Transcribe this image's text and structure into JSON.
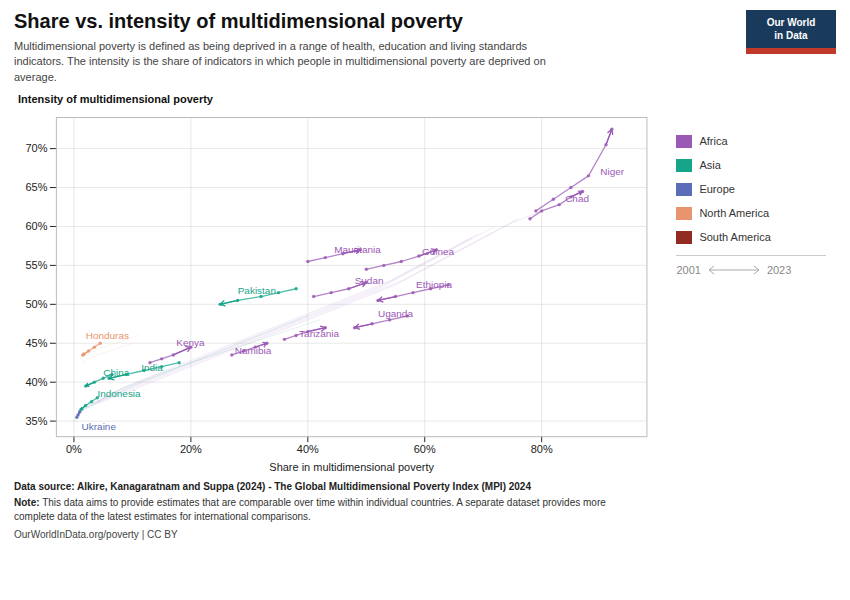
{
  "chart_data": {
    "type": "line",
    "marker": "circle",
    "title": "Share vs. intensity of multidimensional poverty",
    "subtitle": "Multidimensional poverty is defined as being deprived in a range of health, education and living standards\nindicators. The intensity is the share of indicators in which people in multidimensional poverty are deprived on\naverage.",
    "ylabel": "Intensity of multidimensional poverty",
    "xlabel": "Share in multidimensional poverty",
    "source": "Data source: Alkire, Kanagaratnam and Suppa (2024) - The Global Multidimensional Poverty Index (MPI) 2024",
    "note_label": "Note:",
    "note": " This data aims to provide estimates that are comparable over time within individual countries. A separate dataset provides more\ncomplete data of the latest estimates for international comparisons.",
    "credit": "OurWorldInData.org/poverty | CC BY",
    "logo": {
      "lines": [
        "Our World",
        "in Data"
      ],
      "color": "#1a3a5c",
      "stripe_color": "#C0392B"
    },
    "grid": true,
    "legend": "right",
    "legend_items": [
      {
        "name": "Africa",
        "color": "#9B59B6"
      },
      {
        "name": "Asia",
        "color": "#17A589"
      },
      {
        "name": "Europe",
        "color": "#5B6DB8"
      },
      {
        "name": "North America",
        "color": "#E8956D"
      },
      {
        "name": "South America",
        "color": "#922B21"
      }
    ],
    "time_legend": [
      "2001",
      "2023"
    ],
    "xlim": [
      -3,
      98
    ],
    "ylim": [
      33,
      74
    ],
    "xticks": [
      {
        "value": 0,
        "label": "0%"
      },
      {
        "value": 20,
        "label": "20%"
      },
      {
        "value": 40,
        "label": "40%"
      },
      {
        "value": 60,
        "label": "60%"
      },
      {
        "value": 80,
        "label": "80%"
      }
    ],
    "yticks": [
      {
        "value": 35,
        "label": "35%"
      },
      {
        "value": 40,
        "label": "40%"
      },
      {
        "value": 45,
        "label": "45%"
      },
      {
        "value": 50,
        "label": "50%"
      },
      {
        "value": 55,
        "label": "55%"
      },
      {
        "value": 60,
        "label": "60%"
      },
      {
        "value": 65,
        "label": "65%"
      },
      {
        "value": 70,
        "label": "70%"
      }
    ],
    "series": [
      {
        "name": "Niger",
        "continent": "Africa",
        "label_x": 89.5,
        "label_y": 67.0,
        "points": [
          [
            79,
            62.0
          ],
          [
            82,
            63.5
          ],
          [
            85,
            65.0
          ],
          [
            88,
            66.5
          ],
          [
            91,
            70.5
          ],
          [
            92,
            72.5
          ]
        ]
      },
      {
        "name": "Chad",
        "continent": "Africa",
        "label_x": 83.5,
        "label_y": 63.5,
        "points": [
          [
            78,
            61.0
          ],
          [
            80,
            62.0
          ],
          [
            83,
            62.8
          ],
          [
            85,
            63.8
          ],
          [
            87,
            64.5
          ]
        ]
      },
      {
        "name": "Guinea",
        "continent": "Africa",
        "label_x": 59.0,
        "label_y": 56.8,
        "points": [
          [
            50,
            54.5
          ],
          [
            53,
            55.0
          ],
          [
            56,
            55.5
          ],
          [
            59,
            56.2
          ],
          [
            62,
            57.0
          ]
        ]
      },
      {
        "name": "Mauritania",
        "continent": "Africa",
        "label_x": 44.0,
        "label_y": 57.0,
        "points": [
          [
            40,
            55.5
          ],
          [
            43,
            56.0
          ],
          [
            46,
            56.5
          ],
          [
            49,
            57.0
          ]
        ]
      },
      {
        "name": "Sudan",
        "continent": "Africa",
        "label_x": 47.5,
        "label_y": 53.0,
        "points": [
          [
            41,
            51.0
          ],
          [
            44,
            51.5
          ],
          [
            47,
            52.0
          ],
          [
            50,
            52.8
          ]
        ]
      },
      {
        "name": "Ethiopia",
        "continent": "Africa",
        "label_x": 58.0,
        "label_y": 52.5,
        "points": [
          [
            64,
            52.5
          ],
          [
            61,
            52.0
          ],
          [
            58,
            51.5
          ],
          [
            55,
            51.0
          ],
          [
            52,
            50.5
          ]
        ]
      },
      {
        "name": "Uganda",
        "continent": "Africa",
        "label_x": 51.5,
        "label_y": 48.8,
        "points": [
          [
            57,
            48.5
          ],
          [
            54,
            48.0
          ],
          [
            51,
            47.5
          ],
          [
            48,
            47.0
          ]
        ]
      },
      {
        "name": "Tanzania",
        "continent": "Africa",
        "label_x": 38.0,
        "label_y": 46.2,
        "points": [
          [
            36,
            45.5
          ],
          [
            38,
            46.0
          ],
          [
            40,
            46.5
          ],
          [
            43,
            47.0
          ]
        ]
      },
      {
        "name": "Kenya",
        "continent": "Africa",
        "label_x": 17.0,
        "label_y": 45.0,
        "points": [
          [
            13,
            42.5
          ],
          [
            15,
            43.0
          ],
          [
            17,
            43.5
          ],
          [
            20,
            44.5
          ]
        ]
      },
      {
        "name": "Namibia",
        "continent": "Africa",
        "label_x": 27.0,
        "label_y": 44.0,
        "points": [
          [
            27,
            43.5
          ],
          [
            29,
            44.0
          ],
          [
            31,
            44.5
          ],
          [
            33,
            45.0
          ]
        ]
      },
      {
        "name": "Pakistan",
        "continent": "Asia",
        "label_x": 27.5,
        "label_y": 51.8,
        "points": [
          [
            38,
            52.0
          ],
          [
            35,
            51.5
          ],
          [
            32,
            51.0
          ],
          [
            28,
            50.5
          ],
          [
            25,
            50.0
          ]
        ]
      },
      {
        "name": "India",
        "continent": "Asia",
        "label_x": 11.0,
        "label_y": 41.8,
        "points": [
          [
            18,
            42.5
          ],
          [
            15,
            42.0
          ],
          [
            12,
            41.5
          ],
          [
            9,
            41.0
          ],
          [
            6,
            40.5
          ]
        ]
      },
      {
        "name": "China",
        "continent": "Asia",
        "label_x": 4.5,
        "label_y": 41.2,
        "points": [
          [
            6.5,
            41.0
          ],
          [
            5.0,
            40.5
          ],
          [
            3.5,
            40.0
          ],
          [
            2.0,
            39.5
          ]
        ]
      },
      {
        "name": "Indonesia",
        "continent": "Asia",
        "label_x": 3.5,
        "label_y": 38.5,
        "points": [
          [
            4.0,
            38.0
          ],
          [
            3.0,
            37.5
          ],
          [
            2.0,
            37.0
          ],
          [
            1.2,
            36.5
          ]
        ]
      },
      {
        "name": "Ukraine",
        "continent": "Europe",
        "label_x": 0.8,
        "label_y": 34.3,
        "points": [
          [
            0.5,
            35.5
          ],
          [
            0.7,
            35.8
          ],
          [
            1.0,
            36.2
          ]
        ]
      },
      {
        "name": "Honduras",
        "continent": "North America",
        "label_x": 1.5,
        "label_y": 46.0,
        "points": [
          [
            4.5,
            45.0
          ],
          [
            3.5,
            44.5
          ],
          [
            2.5,
            44.0
          ],
          [
            1.5,
            43.5
          ]
        ]
      }
    ],
    "background_series": [
      {
        "continent": "Africa",
        "points": [
          [
            1,
            36.5
          ],
          [
            5,
            37.5
          ],
          [
            10,
            39.0
          ],
          [
            15,
            40.5
          ],
          [
            20,
            42.0
          ],
          [
            25,
            43.5
          ],
          [
            30,
            45.0
          ],
          [
            35,
            46.5
          ],
          [
            40,
            48.0
          ],
          [
            45,
            49.5
          ],
          [
            50,
            51.0
          ],
          [
            55,
            52.5
          ],
          [
            60,
            54.5
          ],
          [
            65,
            56.5
          ],
          [
            70,
            58.5
          ],
          [
            75,
            60.5
          ],
          [
            80,
            62.0
          ]
        ]
      },
      {
        "continent": "Africa",
        "points": [
          [
            2,
            37.0
          ],
          [
            6,
            38.0
          ],
          [
            11,
            39.5
          ],
          [
            16,
            41.0
          ],
          [
            21,
            42.5
          ],
          [
            26,
            44.0
          ],
          [
            31,
            45.5
          ],
          [
            36,
            47.0
          ],
          [
            41,
            48.5
          ],
          [
            46,
            50.0
          ],
          [
            51,
            51.5
          ],
          [
            56,
            53.0
          ],
          [
            61,
            55.0
          ],
          [
            66,
            57.0
          ],
          [
            71,
            59.0
          ],
          [
            76,
            61.0
          ]
        ]
      },
      {
        "continent": "Africa",
        "points": [
          [
            3,
            37.2
          ],
          [
            7,
            38.5
          ],
          [
            12,
            40.0
          ],
          [
            17,
            41.5
          ],
          [
            22,
            43.0
          ],
          [
            27,
            44.5
          ],
          [
            32,
            46.0
          ],
          [
            37,
            47.5
          ],
          [
            42,
            49.0
          ],
          [
            47,
            50.5
          ],
          [
            52,
            52.0
          ],
          [
            57,
            54.0
          ],
          [
            62,
            56.0
          ],
          [
            67,
            58.0
          ],
          [
            72,
            60.0
          ]
        ]
      },
      {
        "continent": "Africa",
        "points": [
          [
            4,
            37.5
          ],
          [
            8,
            39.0
          ],
          [
            13,
            40.5
          ],
          [
            18,
            42.0
          ],
          [
            23,
            43.5
          ],
          [
            28,
            45.0
          ],
          [
            33,
            46.5
          ],
          [
            38,
            48.0
          ],
          [
            43,
            49.5
          ],
          [
            48,
            51.0
          ],
          [
            53,
            52.5
          ],
          [
            58,
            54.5
          ],
          [
            63,
            56.5
          ],
          [
            68,
            58.5
          ]
        ]
      },
      {
        "continent": "Africa",
        "points": [
          [
            5,
            38.0
          ],
          [
            9,
            39.5
          ],
          [
            14,
            41.0
          ],
          [
            19,
            42.5
          ],
          [
            24,
            44.0
          ],
          [
            29,
            45.5
          ],
          [
            34,
            47.0
          ],
          [
            39,
            48.5
          ],
          [
            44,
            50.0
          ],
          [
            49,
            51.5
          ],
          [
            54,
            53.0
          ],
          [
            59,
            55.0
          ],
          [
            64,
            57.0
          ],
          [
            69,
            59.0
          ]
        ]
      },
      {
        "continent": "Asia",
        "points": [
          [
            0.8,
            36.0
          ],
          [
            3,
            37.0
          ],
          [
            6,
            38.0
          ],
          [
            10,
            39.5
          ],
          [
            15,
            41.0
          ],
          [
            20,
            42.5
          ],
          [
            25,
            44.0
          ],
          [
            30,
            45.5
          ],
          [
            35,
            47.0
          ],
          [
            40,
            48.5
          ]
        ]
      },
      {
        "continent": "Asia",
        "points": [
          [
            1.2,
            36.3
          ],
          [
            4,
            37.5
          ],
          [
            7,
            38.8
          ],
          [
            12,
            40.3
          ],
          [
            18,
            42.0
          ],
          [
            24,
            43.5
          ],
          [
            30,
            45.0
          ],
          [
            36,
            46.5
          ],
          [
            42,
            48.0
          ]
        ]
      },
      {
        "continent": "Europe",
        "points": [
          [
            0.2,
            35.0
          ],
          [
            0.5,
            35.5
          ],
          [
            1.0,
            36.0
          ],
          [
            1.5,
            36.5
          ]
        ]
      },
      {
        "continent": "North America",
        "points": [
          [
            1.0,
            43.0
          ],
          [
            2.0,
            43.5
          ],
          [
            3.5,
            44.0
          ],
          [
            5.0,
            44.5
          ],
          [
            7.0,
            45.0
          ],
          [
            9.0,
            45.5
          ],
          [
            11.0,
            46.0
          ]
        ]
      },
      {
        "continent": "North America",
        "points": [
          [
            1.5,
            42.5
          ],
          [
            2.5,
            43.0
          ],
          [
            4.0,
            43.5
          ],
          [
            6.0,
            44.0
          ],
          [
            8.0,
            44.5
          ],
          [
            10.0,
            45.0
          ]
        ]
      }
    ]
  }
}
